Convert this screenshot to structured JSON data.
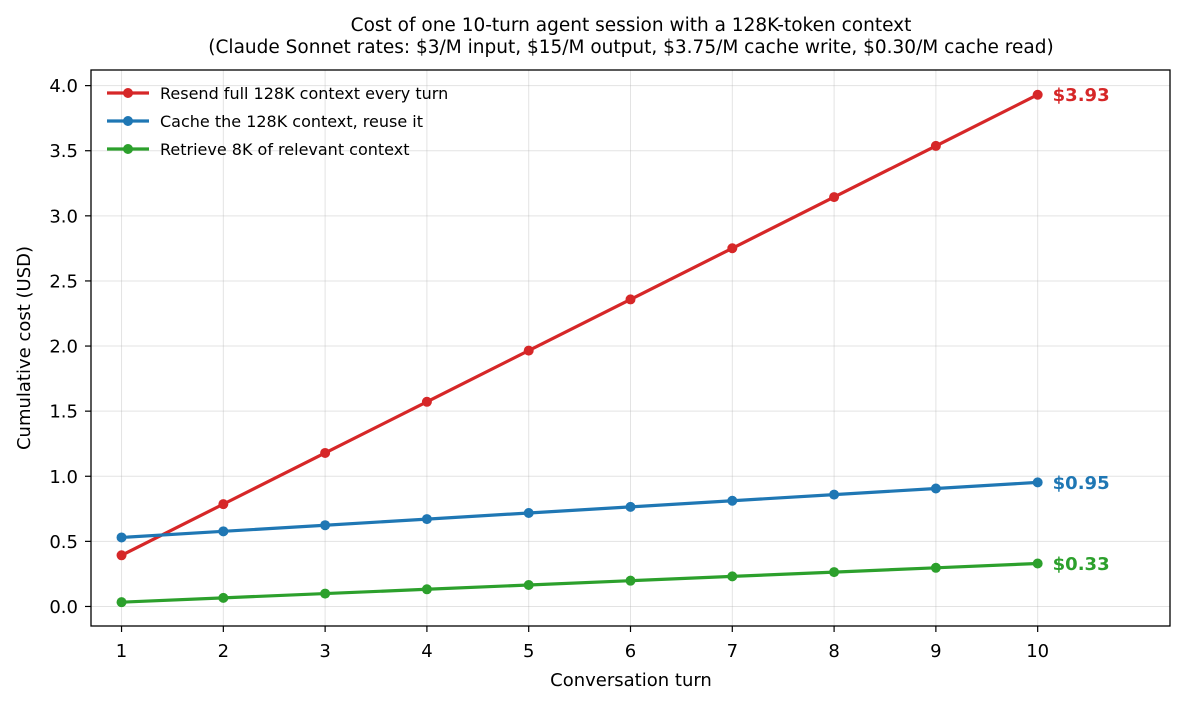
{
  "chart_data": {
    "type": "line",
    "title": "Cost of one 10-turn agent session with a 128K-token context",
    "subtitle": "(Claude Sonnet rates: $3/M input, $15/M output, $3.75/M cache write, $0.30/M cache read)",
    "xlabel": "Conversation turn",
    "ylabel": "Cumulative cost (USD)",
    "x": [
      1,
      2,
      3,
      4,
      5,
      6,
      7,
      8,
      9,
      10
    ],
    "xticks": [
      "1",
      "2",
      "3",
      "4",
      "5",
      "6",
      "7",
      "8",
      "9",
      "10"
    ],
    "yticks": [
      "0.0",
      "0.5",
      "1.0",
      "1.5",
      "2.0",
      "2.5",
      "3.0",
      "3.5",
      "4.0"
    ],
    "xlim": [
      0.7,
      11.3
    ],
    "ylim": [
      -0.15,
      4.12
    ],
    "grid": true,
    "legend_position": "top-left",
    "series": [
      {
        "name": "Resend full 128K context every turn",
        "color": "#d62728",
        "values": [
          0.393,
          0.786,
          1.179,
          1.572,
          1.965,
          2.358,
          2.751,
          3.144,
          3.537,
          3.93
        ],
        "end_label": "$3.93"
      },
      {
        "name": "Cache the 128K context, reuse it",
        "color": "#1f77b4",
        "values": [
          0.53,
          0.577,
          0.624,
          0.671,
          0.718,
          0.765,
          0.812,
          0.859,
          0.906,
          0.953
        ],
        "end_label": "$0.95"
      },
      {
        "name": "Retrieve 8K of relevant context",
        "color": "#2ca02c",
        "values": [
          0.033,
          0.066,
          0.099,
          0.132,
          0.165,
          0.198,
          0.231,
          0.264,
          0.297,
          0.33
        ],
        "end_label": "$0.33"
      }
    ]
  }
}
